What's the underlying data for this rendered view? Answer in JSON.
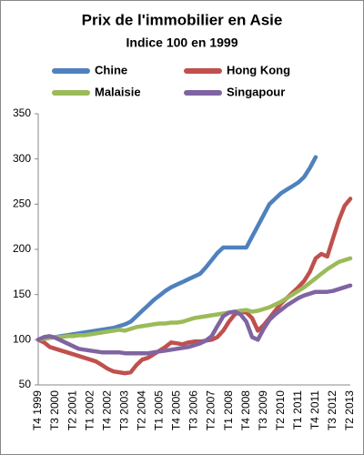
{
  "chart_data": {
    "type": "line",
    "title": "Prix de l'immobilier  en Asie",
    "subtitle": "Indice 100 en 1999",
    "legend": "top",
    "categories": [
      "T4 1999",
      null,
      null,
      "T3 2000",
      null,
      null,
      "T2 2001",
      null,
      null,
      "T1 2002",
      null,
      null,
      "T4 2002",
      null,
      null,
      "T3 2003",
      null,
      null,
      "T2 2004",
      null,
      null,
      "T1 2005",
      null,
      null,
      "T4 2005",
      null,
      null,
      "T3 2006",
      null,
      null,
      "T2 2007",
      null,
      null,
      "T1 2008",
      null,
      null,
      "T4 2008",
      null,
      null,
      "T3 2009",
      null,
      null,
      "T2 2010",
      null,
      null,
      "T1 2011",
      null,
      null,
      "T4 2011",
      null,
      null,
      "T3 2012",
      null,
      null,
      "T2 2013"
    ],
    "ylim": [
      50,
      350
    ],
    "yticks": [
      50,
      100,
      150,
      200,
      250,
      300,
      350
    ],
    "series": [
      {
        "name": "Chine",
        "color": "#4f81bd",
        "values": [
          100,
          101,
          102,
          103,
          104,
          105,
          106,
          107,
          108,
          109,
          110,
          111,
          112,
          113,
          115,
          117,
          120,
          126,
          132,
          138,
          144,
          149,
          154,
          158,
          161,
          164,
          167,
          170,
          173,
          180,
          188,
          196,
          202,
          202,
          202,
          202,
          202,
          214,
          226,
          238,
          250,
          256,
          262,
          266,
          270,
          274,
          280,
          290,
          302,
          null,
          null,
          null,
          null,
          null,
          null
        ]
      },
      {
        "name": "Hong Kong",
        "color": "#c0504d",
        "values": [
          100,
          97,
          92,
          90,
          88,
          86,
          84,
          82,
          80,
          78,
          76,
          72,
          68,
          65,
          64,
          63,
          64,
          72,
          78,
          80,
          84,
          88,
          92,
          97,
          96,
          95,
          97,
          98,
          98,
          99,
          100,
          103,
          110,
          120,
          128,
          131,
          130,
          124,
          110,
          116,
          124,
          132,
          140,
          146,
          152,
          158,
          165,
          175,
          190,
          195,
          192,
          212,
          232,
          248,
          256
        ]
      },
      {
        "name": "Malaisie",
        "color": "#9bbb59",
        "values": [
          100,
          101,
          102,
          103,
          103,
          104,
          104,
          105,
          105,
          106,
          107,
          108,
          109,
          110,
          111,
          110,
          112,
          114,
          115,
          116,
          117,
          118,
          118,
          119,
          119,
          120,
          122,
          124,
          125,
          126,
          127,
          128,
          129,
          130,
          131,
          132,
          133,
          131,
          132,
          134,
          136,
          139,
          142,
          146,
          150,
          154,
          158,
          163,
          168,
          173,
          178,
          182,
          186,
          188,
          190
        ]
      },
      {
        "name": "Singapour",
        "color": "#8064a2",
        "values": [
          100,
          103,
          104,
          102,
          99,
          96,
          93,
          90,
          89,
          88,
          87,
          86,
          86,
          86,
          86,
          85,
          85,
          85,
          85,
          85,
          86,
          87,
          88,
          89,
          90,
          91,
          92,
          94,
          96,
          99,
          104,
          115,
          126,
          130,
          131,
          128,
          120,
          103,
          100,
          112,
          122,
          128,
          133,
          138,
          142,
          146,
          149,
          151,
          153,
          153,
          153,
          154,
          156,
          158,
          160
        ]
      }
    ]
  }
}
